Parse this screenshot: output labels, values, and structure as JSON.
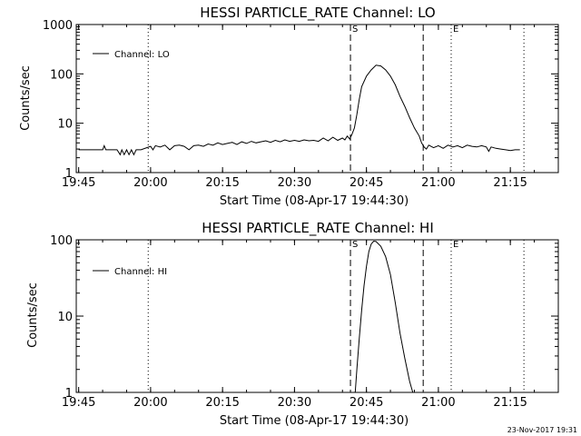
{
  "footer": "23-Nov-2017 19:31",
  "chart_data": [
    {
      "type": "line",
      "title": "HESSI PARTICLE_RATE Channel: LO",
      "xlabel": "Start Time (08-Apr-17 19:44:30)",
      "ylabel": "Counts/sec",
      "y_scale": "log",
      "ylim": [
        1,
        1000
      ],
      "xlim": [
        "19:44:30",
        "21:25:00"
      ],
      "x_ticks": [
        "19:45",
        "20:00",
        "20:15",
        "20:30",
        "20:45",
        "21:00",
        "21:15"
      ],
      "y_ticks": [
        "1",
        "10",
        "100",
        "1000"
      ],
      "legend": {
        "position": "top-left",
        "entries": [
          "Channel: LO"
        ]
      },
      "markers": [
        {
          "label": "S",
          "time": "20:41:40",
          "style": "dashed"
        },
        {
          "time": "20:56:50",
          "style": "dashed"
        },
        {
          "label": "E",
          "time": "21:02:40",
          "style": "dotted"
        }
      ],
      "reference_lines": [
        {
          "time": "19:59:30",
          "style": "dotted"
        },
        {
          "time": "21:17:50",
          "style": "dotted"
        }
      ],
      "series": [
        {
          "name": "Channel: LO",
          "x": [
            "19:45",
            "19:50",
            "19:50:20",
            "19:50:40",
            "19:51",
            "19:53",
            "19:53:40",
            "19:54",
            "19:54:30",
            "19:55",
            "19:55:30",
            "19:56",
            "19:56:30",
            "19:57",
            "19:58",
            "20:00",
            "20:00:30",
            "20:01",
            "20:02",
            "20:03",
            "20:04",
            "20:05",
            "20:06",
            "20:07",
            "20:08",
            "20:09",
            "20:10",
            "20:11",
            "20:12",
            "20:13",
            "20:14",
            "20:15",
            "20:16",
            "20:17",
            "20:18",
            "20:19",
            "20:20",
            "20:21",
            "20:22",
            "20:23",
            "20:24",
            "20:25",
            "20:26",
            "20:27",
            "20:28",
            "20:29",
            "20:30",
            "20:31",
            "20:32",
            "20:33",
            "20:34",
            "20:35",
            "20:36",
            "20:37",
            "20:38",
            "20:39",
            "20:40",
            "20:40:30",
            "20:41",
            "20:41:30",
            "20:42",
            "20:42:30",
            "20:43",
            "20:43:30",
            "20:44",
            "20:45",
            "20:46",
            "20:47",
            "20:48",
            "20:49",
            "20:50",
            "20:51",
            "20:52",
            "20:53",
            "20:54",
            "20:55",
            "20:56",
            "20:56:30",
            "20:57",
            "20:57:30",
            "20:58",
            "20:59",
            "21:00",
            "21:01",
            "21:02",
            "21:03",
            "21:04",
            "21:05",
            "21:06",
            "21:07",
            "21:08",
            "21:09",
            "21:10",
            "21:10:30",
            "21:11",
            "21:12",
            "21:13",
            "21:14",
            "21:15",
            "21:16",
            "21:17"
          ],
          "values": [
            2.9,
            2.9,
            3.5,
            2.9,
            2.9,
            2.9,
            2.3,
            2.9,
            2.3,
            2.9,
            2.3,
            2.9,
            2.3,
            2.9,
            2.9,
            3.4,
            2.9,
            3.5,
            3.3,
            3.6,
            2.9,
            3.5,
            3.6,
            3.4,
            2.9,
            3.5,
            3.6,
            3.4,
            3.8,
            3.6,
            4.0,
            3.7,
            3.9,
            4.1,
            3.7,
            4.2,
            3.9,
            4.3,
            4.0,
            4.2,
            4.4,
            4.1,
            4.5,
            4.2,
            4.6,
            4.3,
            4.5,
            4.3,
            4.6,
            4.4,
            4.5,
            4.3,
            5.0,
            4.4,
            5.2,
            4.5,
            5.0,
            4.6,
            5.5,
            4.8,
            6.0,
            8.0,
            15,
            30,
            55,
            90,
            120,
            150,
            145,
            120,
            90,
            60,
            35,
            22,
            13,
            8,
            5.5,
            4.0,
            3.3,
            3.0,
            3.6,
            3.2,
            3.5,
            3.1,
            3.6,
            3.3,
            3.5,
            3.2,
            3.6,
            3.4,
            3.3,
            3.5,
            3.3,
            2.7,
            3.3,
            3.1,
            3.0,
            2.9,
            2.8,
            2.9,
            2.9
          ]
        }
      ]
    },
    {
      "type": "line",
      "title": "HESSI PARTICLE_RATE Channel: HI",
      "xlabel": "Start Time (08-Apr-17 19:44:30)",
      "ylabel": "Counts/sec",
      "y_scale": "log",
      "ylim": [
        1,
        100
      ],
      "xlim": [
        "19:44:30",
        "21:25:00"
      ],
      "x_ticks": [
        "19:45",
        "20:00",
        "20:15",
        "20:30",
        "20:45",
        "21:00",
        "21:15"
      ],
      "y_ticks": [
        "1",
        "10",
        "100"
      ],
      "legend": {
        "position": "top-left",
        "entries": [
          "Channel: HI"
        ]
      },
      "markers": [
        {
          "label": "S",
          "time": "20:41:40",
          "style": "dashed"
        },
        {
          "time": "20:56:50",
          "style": "dashed"
        },
        {
          "label": "E",
          "time": "21:02:40",
          "style": "dotted"
        }
      ],
      "reference_lines": [
        {
          "time": "19:59:30",
          "style": "dotted"
        },
        {
          "time": "21:17:50",
          "style": "dotted"
        }
      ],
      "series": [
        {
          "name": "Channel: HI",
          "x": [
            "20:42:40",
            "20:43",
            "20:43:30",
            "20:44",
            "20:44:30",
            "20:45",
            "20:45:30",
            "20:46",
            "20:46:30",
            "20:47",
            "20:48",
            "20:49",
            "20:50",
            "20:51",
            "20:52",
            "20:53",
            "20:54",
            "20:54:40"
          ],
          "values": [
            1.0,
            2.0,
            5,
            12,
            25,
            45,
            70,
            88,
            96,
            95,
            82,
            60,
            35,
            15,
            6,
            2.8,
            1.4,
            1.0
          ]
        }
      ]
    }
  ]
}
